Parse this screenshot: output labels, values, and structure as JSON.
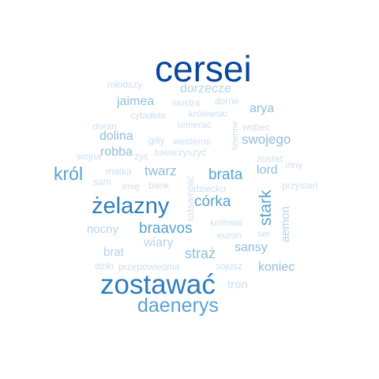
{
  "palette": {
    "darkest": "#08479b",
    "dark": "#2f7ebc",
    "mid": "#5ba3d0",
    "light": "#8fbedd",
    "pale": "#b8d4e8",
    "faint": "#cfe0ef"
  },
  "words": [
    {
      "text": "cersei",
      "weight": 1.0,
      "shade": "darkest"
    },
    {
      "text": "zostawać",
      "weight": 0.82,
      "shade": "dark"
    },
    {
      "text": "żelazny",
      "weight": 0.68,
      "shade": "dark"
    },
    {
      "text": "daenerys",
      "weight": 0.62,
      "shade": "mid"
    },
    {
      "text": "król",
      "weight": 0.55,
      "shade": "mid"
    },
    {
      "text": "stark",
      "weight": 0.5,
      "shade": "mid"
    },
    {
      "text": "braavos",
      "weight": 0.46,
      "shade": "mid"
    },
    {
      "text": "córka",
      "weight": 0.45,
      "shade": "mid"
    },
    {
      "text": "brata",
      "weight": 0.45,
      "shade": "mid"
    },
    {
      "text": "straż",
      "weight": 0.42,
      "shade": "light"
    },
    {
      "text": "swojego",
      "weight": 0.4,
      "shade": "light"
    },
    {
      "text": "twarz",
      "weight": 0.38,
      "shade": "light"
    },
    {
      "text": "dolina",
      "weight": 0.38,
      "shade": "light"
    },
    {
      "text": "robba",
      "weight": 0.38,
      "shade": "light"
    },
    {
      "text": "jaimea",
      "weight": 0.38,
      "shade": "light"
    },
    {
      "text": "dorzecze",
      "weight": 0.38,
      "shade": "pale"
    },
    {
      "text": "arya",
      "weight": 0.38,
      "shade": "light"
    },
    {
      "text": "lord",
      "weight": 0.36,
      "shade": "light"
    },
    {
      "text": "sansy",
      "weight": 0.36,
      "shade": "light"
    },
    {
      "text": "wiary",
      "weight": 0.36,
      "shade": "pale"
    },
    {
      "text": "koniec",
      "weight": 0.36,
      "shade": "light"
    },
    {
      "text": "aemon",
      "weight": 0.34,
      "shade": "pale"
    },
    {
      "text": "nocny",
      "weight": 0.34,
      "shade": "pale"
    },
    {
      "text": "brat",
      "weight": 0.34,
      "shade": "pale"
    },
    {
      "text": "tron",
      "weight": 0.34,
      "shade": "faint"
    },
    {
      "text": "młodszy",
      "weight": 0.2,
      "shade": "faint"
    },
    {
      "text": "siostra",
      "weight": 0.2,
      "shade": "faint"
    },
    {
      "text": "dorne",
      "weight": 0.2,
      "shade": "faint"
    },
    {
      "text": "cytadela",
      "weight": 0.2,
      "shade": "faint"
    },
    {
      "text": "królewski",
      "weight": 0.2,
      "shade": "faint"
    },
    {
      "text": "doran",
      "weight": 0.2,
      "shade": "faint"
    },
    {
      "text": "umierać",
      "weight": 0.2,
      "shade": "faint"
    },
    {
      "text": "wobec",
      "weight": 0.2,
      "shade": "faint"
    },
    {
      "text": "gilly",
      "weight": 0.2,
      "shade": "faint"
    },
    {
      "text": "westeros",
      "weight": 0.2,
      "shade": "faint"
    },
    {
      "text": "wojna",
      "weight": 0.2,
      "shade": "faint"
    },
    {
      "text": "żyć",
      "weight": 0.2,
      "shade": "faint"
    },
    {
      "text": "towarzyszyć",
      "weight": 0.2,
      "shade": "faint"
    },
    {
      "text": "inny",
      "weight": 0.2,
      "shade": "faint"
    },
    {
      "text": "matka",
      "weight": 0.2,
      "shade": "faint"
    },
    {
      "text": "sam",
      "weight": 0.2,
      "shade": "faint"
    },
    {
      "text": "imię",
      "weight": 0.2,
      "shade": "faint"
    },
    {
      "text": "bank",
      "weight": 0.2,
      "shade": "faint"
    },
    {
      "text": "tożsamość",
      "weight": 0.2,
      "shade": "faint"
    },
    {
      "text": "dziecko",
      "weight": 0.2,
      "shade": "faint"
    },
    {
      "text": "zostać",
      "weight": 0.2,
      "shade": "faint"
    },
    {
      "text": "przystań",
      "weight": 0.2,
      "shade": "faint"
    },
    {
      "text": "brienne",
      "weight": 0.2,
      "shade": "faint"
    },
    {
      "text": "królowa",
      "weight": 0.2,
      "shade": "faint"
    },
    {
      "text": "euron",
      "weight": 0.2,
      "shade": "faint"
    },
    {
      "text": "ser",
      "weight": 0.2,
      "shade": "faint"
    },
    {
      "text": "dziki",
      "weight": 0.2,
      "shade": "faint"
    },
    {
      "text": "przepowiednia",
      "weight": 0.2,
      "shade": "faint"
    },
    {
      "text": "sojusz",
      "weight": 0.2,
      "shade": "faint"
    }
  ]
}
